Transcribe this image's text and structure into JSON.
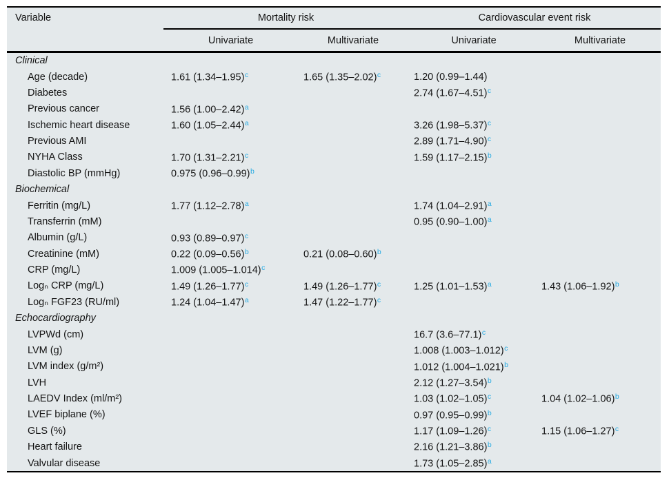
{
  "table": {
    "colors": {
      "table_background": "#e4e9eb",
      "rule": "#000000",
      "significance_superscript": "#29abe2",
      "text": "#141414"
    },
    "col_headers": {
      "variable": "Variable",
      "group1": "Mortality risk",
      "group2": "Cardiovascular event risk",
      "sub": [
        "Univariate",
        "Multivariate",
        "Univariate",
        "Multivariate"
      ]
    },
    "sections": [
      {
        "title": "Clinical",
        "rows": [
          {
            "label": "Age (decade)",
            "cells": [
              {
                "v": "1.61 (1.34–1.95)",
                "s": "c"
              },
              {
                "v": "1.65 (1.35–2.02)",
                "s": "c"
              },
              {
                "v": "1.20 (0.99–1.44)",
                "s": ""
              },
              null
            ]
          },
          {
            "label": "Diabetes",
            "cells": [
              null,
              null,
              {
                "v": "2.74 (1.67–4.51)",
                "s": "c"
              },
              null
            ]
          },
          {
            "label": "Previous cancer",
            "cells": [
              {
                "v": "1.56 (1.00–2.42)",
                "s": "a"
              },
              null,
              null,
              null
            ]
          },
          {
            "label": "Ischemic heart disease",
            "cells": [
              {
                "v": "1.60 (1.05–2.44)",
                "s": "a"
              },
              null,
              {
                "v": "3.26 (1.98–5.37)",
                "s": "c"
              },
              null
            ]
          },
          {
            "label": "Previous AMI",
            "cells": [
              null,
              null,
              {
                "v": "2.89 (1.71–4.90)",
                "s": "c"
              },
              null
            ]
          },
          {
            "label": "NYHA Class",
            "cells": [
              {
                "v": "1.70 (1.31–2.21)",
                "s": "c"
              },
              null,
              {
                "v": "1.59 (1.17–2.15)",
                "s": "b"
              },
              null
            ]
          },
          {
            "label": "Diastolic BP (mmHg)",
            "cells": [
              {
                "v": "0.975 (0.96–0.99)",
                "s": "b"
              },
              null,
              null,
              null
            ]
          }
        ]
      },
      {
        "title": "Biochemical",
        "rows": [
          {
            "label": "Ferritin (mg/L)",
            "cells": [
              {
                "v": "1.77 (1.12–2.78)",
                "s": "a"
              },
              null,
              {
                "v": "1.74 (1.04–2.91)",
                "s": "a"
              },
              null
            ]
          },
          {
            "label": "Transferrin (mM)",
            "cells": [
              null,
              null,
              {
                "v": "0.95 (0.90–1.00)",
                "s": "a"
              },
              null
            ]
          },
          {
            "label": "Albumin (g/L)",
            "cells": [
              {
                "v": "0.93 (0.89–0.97)",
                "s": "c"
              },
              null,
              null,
              null
            ]
          },
          {
            "label": "Creatinine (mM)",
            "cells": [
              {
                "v": "0.22 (0.09–0.56)",
                "s": "b"
              },
              {
                "v": "0.21 (0.08–0.60)",
                "s": "b"
              },
              null,
              null
            ]
          },
          {
            "label": "CRP (mg/L)",
            "cells": [
              {
                "v": "1.009 (1.005–1.014)",
                "s": "c"
              },
              null,
              null,
              null
            ]
          },
          {
            "label": "Logₙ CRP (mg/L)",
            "cells": [
              {
                "v": "1.49 (1.26–1.77)",
                "s": "c"
              },
              {
                "v": "1.49 (1.26–1.77)",
                "s": "c"
              },
              {
                "v": "1.25 (1.01–1.53)",
                "s": "a"
              },
              {
                "v": "1.43 (1.06–1.92)",
                "s": "b"
              }
            ]
          },
          {
            "label": "Logₙ FGF23 (RU/ml)",
            "cells": [
              {
                "v": "1.24 (1.04–1.47)",
                "s": "a"
              },
              {
                "v": "1.47 (1.22–1.77)",
                "s": "c"
              },
              null,
              null
            ]
          }
        ]
      },
      {
        "title": "Echocardiography",
        "rows": [
          {
            "label": "LVPWd (cm)",
            "cells": [
              null,
              null,
              {
                "v": "16.7 (3.6–77.1)",
                "s": "c"
              },
              null
            ]
          },
          {
            "label": "LVM (g)",
            "cells": [
              null,
              null,
              {
                "v": "1.008 (1.003–1.012)",
                "s": "c"
              },
              null
            ]
          },
          {
            "label": "LVM index (g/m²)",
            "cells": [
              null,
              null,
              {
                "v": "1.012 (1.004–1.021)",
                "s": "b"
              },
              null
            ]
          },
          {
            "label": "LVH",
            "cells": [
              null,
              null,
              {
                "v": "2.12 (1.27–3.54)",
                "s": "b"
              },
              null
            ]
          },
          {
            "label": "LAEDV Index (ml/m²)",
            "cells": [
              null,
              null,
              {
                "v": "1.03 (1.02–1.05)",
                "s": "c"
              },
              {
                "v": "1.04 (1.02–1.06)",
                "s": "b"
              }
            ]
          },
          {
            "label": "LVEF biplane (%)",
            "cells": [
              null,
              null,
              {
                "v": "0.97 (0.95–0.99)",
                "s": "b"
              },
              null
            ]
          },
          {
            "label": "GLS (%)",
            "cells": [
              null,
              null,
              {
                "v": "1.17 (1.09–1.26)",
                "s": "c"
              },
              {
                "v": "1.15 (1.06–1.27)",
                "s": "c"
              }
            ]
          },
          {
            "label": "Heart failure",
            "cells": [
              null,
              null,
              {
                "v": "2.16 (1.21–3.86)",
                "s": "b"
              },
              null
            ]
          },
          {
            "label": "Valvular disease",
            "cells": [
              null,
              null,
              {
                "v": "1.73 (1.05–2.85)",
                "s": "a"
              },
              null
            ]
          }
        ]
      }
    ]
  }
}
